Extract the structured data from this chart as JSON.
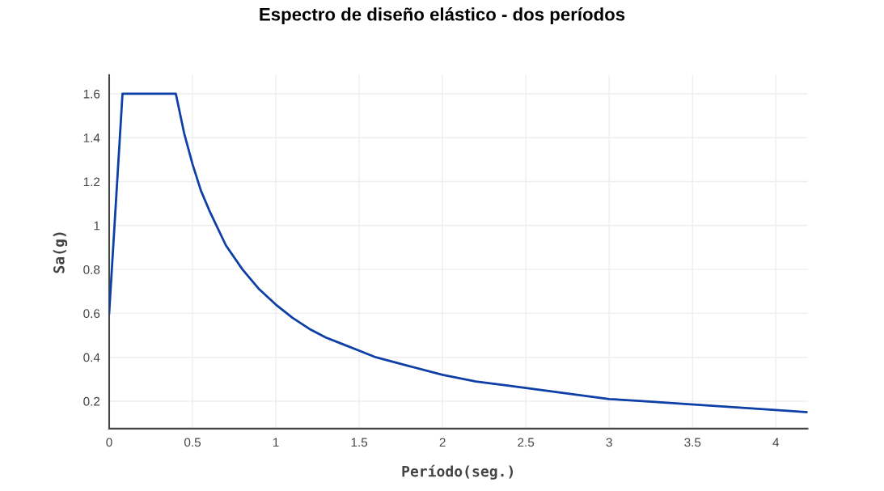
{
  "chart_data": {
    "type": "line",
    "title": "Espectro de diseño elástico - dos períodos",
    "xlabel": "Período(seg.)",
    "ylabel": "Sa(g)",
    "series": [
      {
        "color": "#0d3fa6",
        "x": [
          0,
          0.08,
          0.4,
          0.45,
          0.5,
          0.55,
          0.6,
          0.7,
          0.8,
          0.9,
          1,
          1.1,
          1.2,
          1.3,
          1.4,
          1.5,
          1.6,
          1.8,
          2,
          2.2,
          2.4,
          2.6,
          2.8,
          3,
          3.2,
          3.4,
          3.6,
          3.8,
          4,
          4.19
        ],
        "values": [
          0.6,
          1.6,
          1.6,
          1.42,
          1.28,
          1.16,
          1.07,
          0.91,
          0.8,
          0.71,
          0.64,
          0.58,
          0.53,
          0.49,
          0.46,
          0.43,
          0.4,
          0.36,
          0.32,
          0.29,
          0.27,
          0.25,
          0.23,
          0.21,
          0.2,
          0.19,
          0.18,
          0.17,
          0.16,
          0.15
        ]
      }
    ],
    "xlim": [
      0,
      4.19
    ],
    "ylim": [
      0.075,
      1.685
    ],
    "xticks": [
      0,
      0.5,
      1,
      1.5,
      2,
      2.5,
      3,
      3.5,
      4
    ],
    "yticks": [
      0.2,
      0.4,
      0.6,
      0.8,
      1,
      1.2,
      1.4,
      1.6
    ],
    "grid": true,
    "marker": "none",
    "line_style": "solid"
  }
}
